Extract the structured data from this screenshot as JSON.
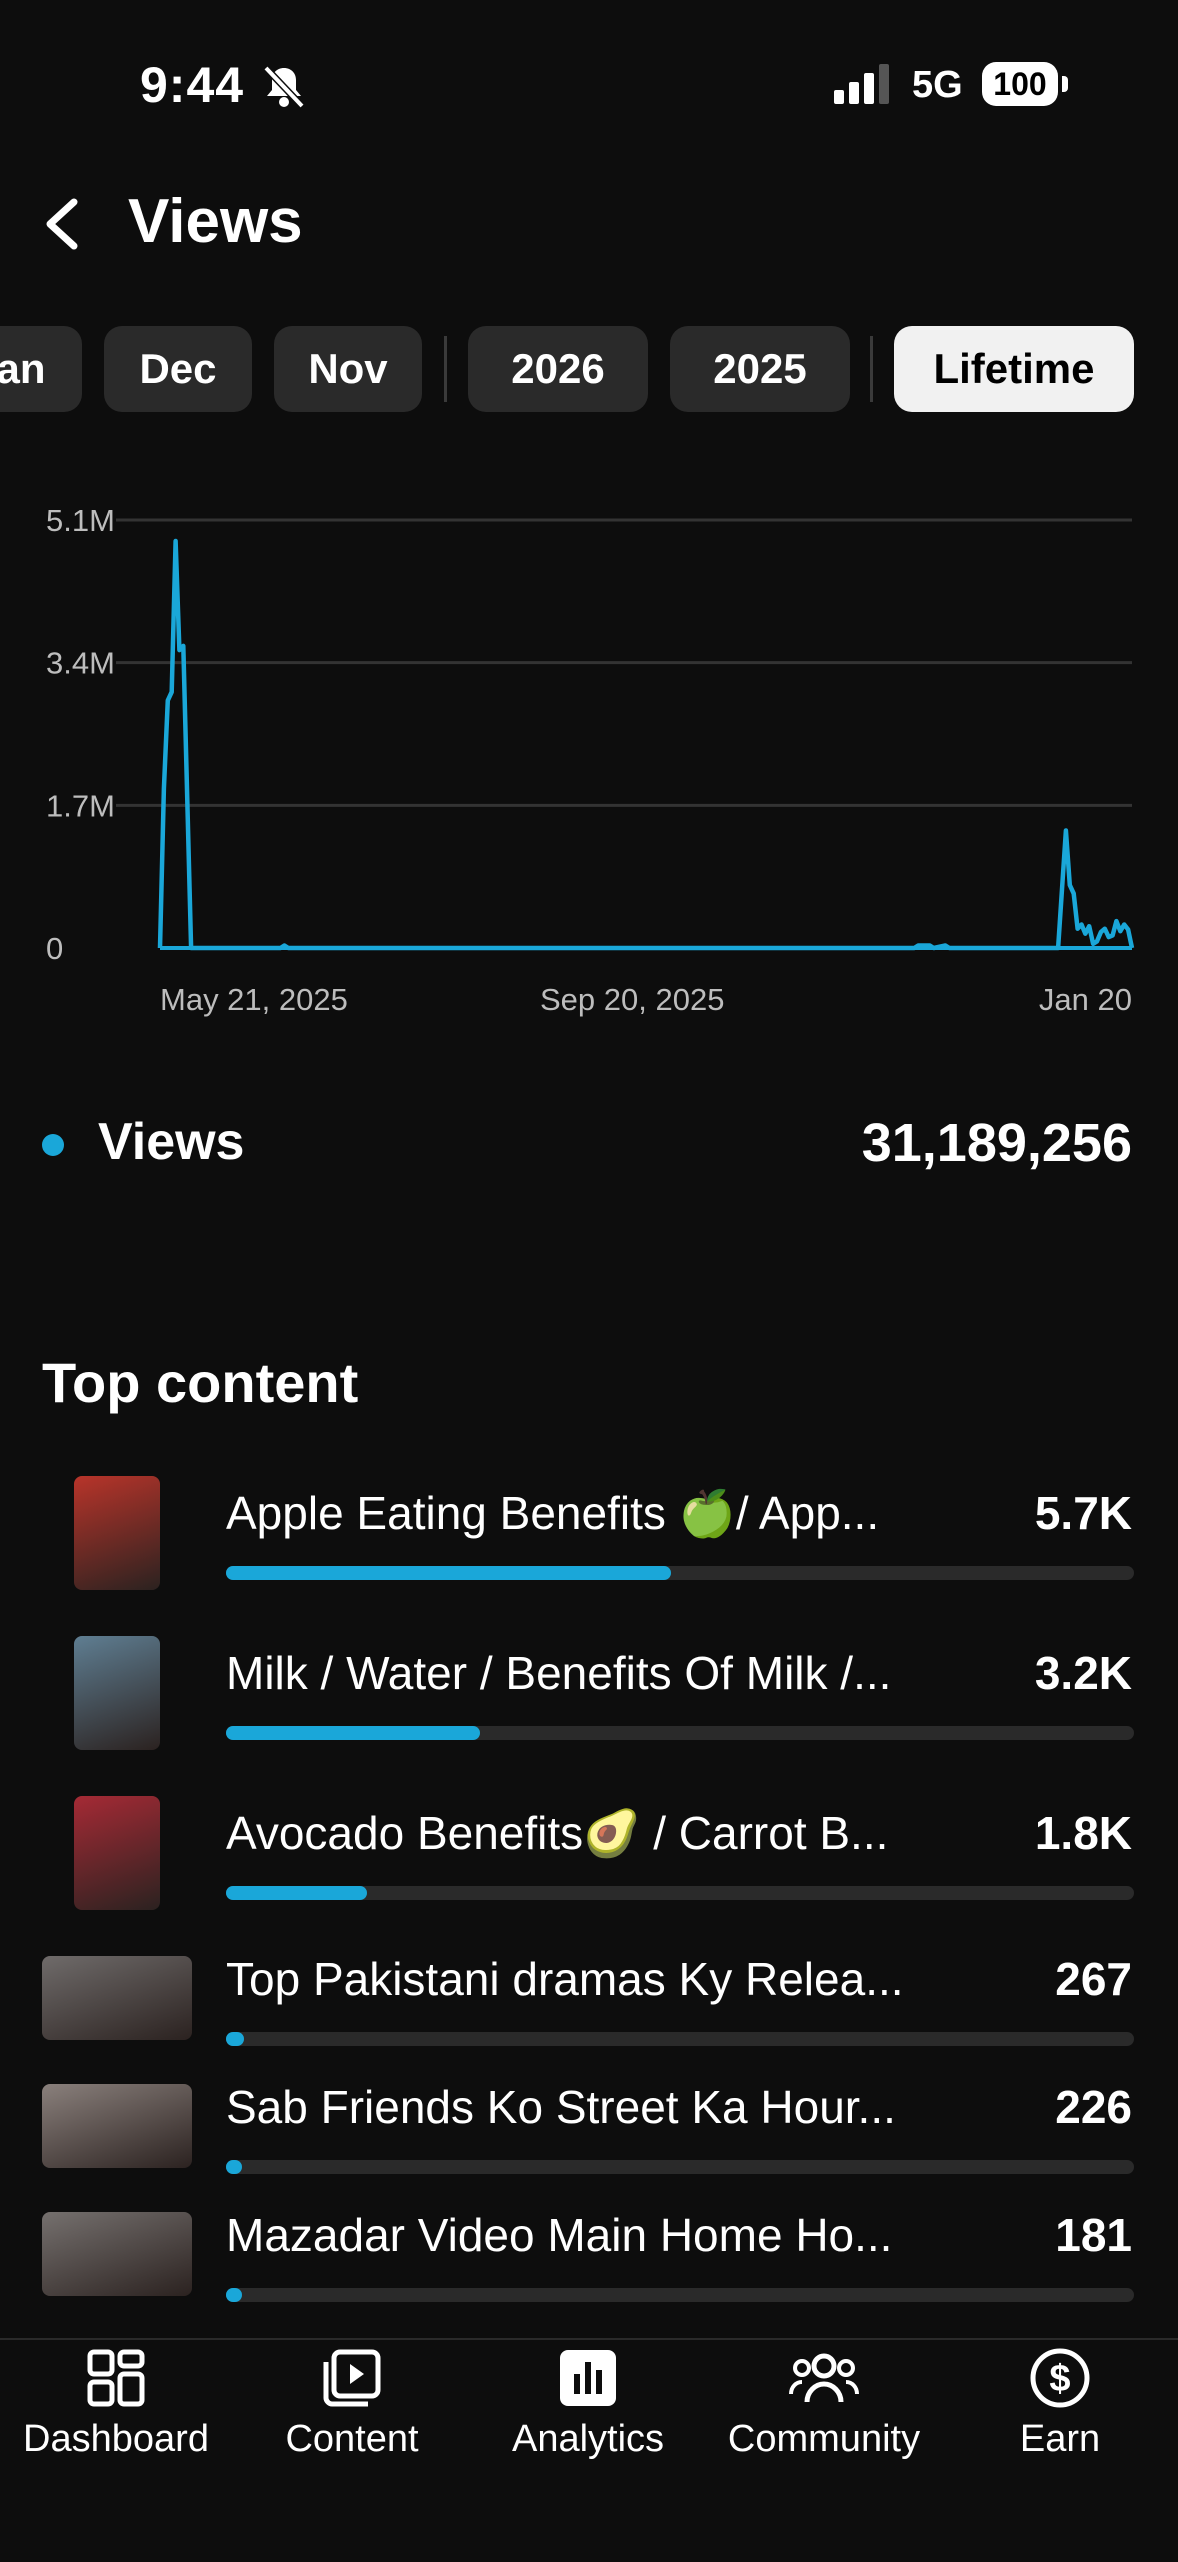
{
  "status_bar": {
    "time": "9:44",
    "network": "5G",
    "battery": "100"
  },
  "header": {
    "title": "Views"
  },
  "tabs": [
    "an",
    "Dec",
    "Nov",
    "2026",
    "2025",
    "Lifetime"
  ],
  "active_tab": "Lifetime",
  "chart_data": {
    "type": "line",
    "series": [
      {
        "name": "Views",
        "color": "#1aa7d9",
        "points": [
          [
            "2025-05-15",
            0
          ],
          [
            "2025-05-16",
            1900000
          ],
          [
            "2025-05-17",
            2950000
          ],
          [
            "2025-05-18",
            3050000
          ],
          [
            "2025-05-19",
            4850000
          ],
          [
            "2025-05-20",
            3550000
          ],
          [
            "2025-05-21",
            3600000
          ],
          [
            "2025-05-22",
            1800000
          ],
          [
            "2025-05-23",
            0
          ],
          [
            "2025-06-15",
            0
          ],
          [
            "2025-06-16",
            30000
          ],
          [
            "2025-06-17",
            0
          ],
          [
            "2025-09-20",
            0
          ],
          [
            "2025-11-25",
            0
          ],
          [
            "2025-11-26",
            30000
          ],
          [
            "2025-11-29",
            30000
          ],
          [
            "2025-11-30",
            0
          ],
          [
            "2025-12-03",
            30000
          ],
          [
            "2025-12-04",
            0
          ],
          [
            "2026-01-01",
            0
          ],
          [
            "2026-01-03",
            1400000
          ],
          [
            "2026-01-04",
            750000
          ],
          [
            "2026-01-05",
            650000
          ],
          [
            "2026-01-06",
            230000
          ],
          [
            "2026-01-07",
            280000
          ],
          [
            "2026-01-08",
            170000
          ],
          [
            "2026-01-09",
            260000
          ],
          [
            "2026-01-10",
            50000
          ],
          [
            "2026-01-11",
            80000
          ],
          [
            "2026-01-12",
            190000
          ],
          [
            "2026-01-13",
            230000
          ],
          [
            "2026-01-14",
            130000
          ],
          [
            "2026-01-15",
            150000
          ],
          [
            "2026-01-16",
            320000
          ],
          [
            "2026-01-17",
            200000
          ],
          [
            "2026-01-18",
            280000
          ],
          [
            "2026-01-19",
            220000
          ],
          [
            "2026-01-20",
            0
          ]
        ]
      }
    ],
    "y_ticks": [
      "0",
      "1.7M",
      "3.4M",
      "5.1M"
    ],
    "y_tick_values": [
      0,
      1700000,
      3400000,
      5100000
    ],
    "ylim": [
      0,
      5100000
    ],
    "x_ticks": [
      "May 21, 2025",
      "Sep 20, 2025",
      "Jan 20"
    ],
    "grid": true
  },
  "legend": {
    "label": "Views",
    "total": "31,189,256"
  },
  "top_content": {
    "title": "Top content",
    "items": [
      {
        "title": "Apple Eating Benefits 🍏/ App...",
        "value": "5.7K",
        "fraction": 0.49,
        "thumb": "portrait",
        "thumb_color": "#b8342a"
      },
      {
        "title": "Milk / Water / Benefits Of Milk /...",
        "value": "3.2K",
        "fraction": 0.28,
        "thumb": "portrait",
        "thumb_color": "#5f7e92"
      },
      {
        "title": "Avocado Benefits🥑 / Carrot B...",
        "value": "1.8K",
        "fraction": 0.155,
        "thumb": "portrait",
        "thumb_color": "#a52a35"
      },
      {
        "title": "Top Pakistani dramas Ky Relea...",
        "value": "267",
        "fraction": 0.02,
        "thumb": "land",
        "thumb_color": "#6f6b6a"
      },
      {
        "title": "Sab Friends Ko Street Ka Hour...",
        "value": "226",
        "fraction": 0.018,
        "thumb": "land",
        "thumb_color": "#8a807c"
      },
      {
        "title": "Mazadar Video Main Home Ho...",
        "value": "181",
        "fraction": 0.015,
        "thumb": "land",
        "thumb_color": "#75706e"
      }
    ]
  },
  "nav": [
    {
      "label": "Dashboard",
      "icon": "dashboard-icon"
    },
    {
      "label": "Content",
      "icon": "content-icon"
    },
    {
      "label": "Analytics",
      "icon": "analytics-icon"
    },
    {
      "label": "Community",
      "icon": "community-icon"
    },
    {
      "label": "Earn",
      "icon": "earn-icon"
    }
  ]
}
